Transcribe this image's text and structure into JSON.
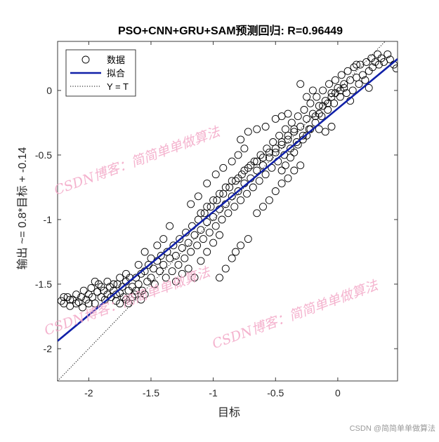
{
  "chart_data": {
    "type": "scatter",
    "title": "PSO+CNN+GRU+SAM预测回归: R=0.96449",
    "xlabel": "目标",
    "ylabel": "输出 ~= 0.8*目标 + -0.14",
    "xlim": [
      -2.25,
      0.48
    ],
    "ylim": [
      -2.25,
      0.38
    ],
    "xticks": [
      -2,
      -1.5,
      -1,
      -0.5,
      0
    ],
    "xtick_labels": [
      "-2",
      "-1.5",
      "-1",
      "-0.5",
      "0"
    ],
    "yticks": [
      -2,
      -1.5,
      -1,
      -0.5,
      0
    ],
    "ytick_labels": [
      "-2",
      "-1.5",
      "-1",
      "-0.5",
      "0"
    ],
    "grid": false,
    "legend": {
      "placement": "top-left",
      "entries": [
        {
          "label": "数据",
          "style": "marker-circle",
          "color": "#000000"
        },
        {
          "label": "拟合",
          "style": "solid-line",
          "color": "#1020a8"
        },
        {
          "label": "Y = T",
          "style": "dotted-line",
          "color": "#000000"
        }
      ]
    },
    "fit_line": {
      "slope": 0.8,
      "intercept": -0.14,
      "color": "#1020a8"
    },
    "identity_line": {
      "slope": 1,
      "intercept": 0,
      "color": "#000000"
    },
    "series": [
      {
        "name": "数据",
        "marker": "open-circle",
        "color": "#000000",
        "points": [
          [
            -2.2,
            -1.65
          ],
          [
            -2.17,
            -1.6
          ],
          [
            -2.15,
            -1.67
          ],
          [
            -2.13,
            -1.62
          ],
          [
            -2.1,
            -1.58
          ],
          [
            -2.08,
            -1.64
          ],
          [
            -2.06,
            -1.6
          ],
          [
            -2.04,
            -1.55
          ],
          [
            -2.02,
            -1.62
          ],
          [
            -2.0,
            -1.58
          ],
          [
            -1.98,
            -1.53
          ],
          [
            -1.97,
            -1.6
          ],
          [
            -1.95,
            -1.65
          ],
          [
            -1.93,
            -1.56
          ],
          [
            -1.92,
            -1.5
          ],
          [
            -1.9,
            -1.6
          ],
          [
            -1.88,
            -1.55
          ],
          [
            -1.87,
            -1.62
          ],
          [
            -1.85,
            -1.58
          ],
          [
            -1.83,
            -1.52
          ],
          [
            -1.82,
            -1.6
          ],
          [
            -1.8,
            -1.55
          ],
          [
            -1.78,
            -1.63
          ],
          [
            -1.77,
            -1.5
          ],
          [
            -1.75,
            -1.57
          ],
          [
            -1.73,
            -1.52
          ],
          [
            -1.72,
            -1.6
          ],
          [
            -1.7,
            -1.48
          ],
          [
            -1.68,
            -1.55
          ],
          [
            -1.67,
            -1.45
          ],
          [
            -1.65,
            -1.52
          ],
          [
            -1.63,
            -1.58
          ],
          [
            -1.62,
            -1.45
          ],
          [
            -1.6,
            -1.5
          ],
          [
            -1.58,
            -1.42
          ],
          [
            -1.57,
            -1.55
          ],
          [
            -1.55,
            -1.4
          ],
          [
            -1.53,
            -1.48
          ],
          [
            -1.52,
            -1.35
          ],
          [
            -1.5,
            -1.45
          ],
          [
            -1.48,
            -1.38
          ],
          [
            -1.47,
            -1.5
          ],
          [
            -1.45,
            -1.32
          ],
          [
            -1.43,
            -1.4
          ],
          [
            -1.42,
            -1.28
          ],
          [
            -1.4,
            -1.35
          ],
          [
            -1.38,
            -1.45
          ],
          [
            -1.37,
            -1.25
          ],
          [
            -1.35,
            -1.3
          ],
          [
            -1.33,
            -1.4
          ],
          [
            -1.32,
            -1.2
          ],
          [
            -1.3,
            -1.28
          ],
          [
            -1.28,
            -1.35
          ],
          [
            -1.27,
            -1.15
          ],
          [
            -1.25,
            -1.22
          ],
          [
            -1.23,
            -1.3
          ],
          [
            -1.22,
            -1.1
          ],
          [
            -1.2,
            -1.18
          ],
          [
            -1.18,
            -1.25
          ],
          [
            -1.17,
            -1.05
          ],
          [
            -1.15,
            -1.12
          ],
          [
            -1.13,
            -1.2
          ],
          [
            -1.12,
            -1.0
          ],
          [
            -1.1,
            -1.08
          ],
          [
            -1.08,
            -1.15
          ],
          [
            -1.07,
            -0.95
          ],
          [
            -1.05,
            -1.02
          ],
          [
            -1.03,
            -1.1
          ],
          [
            -1.02,
            -0.9
          ],
          [
            -1.0,
            -0.98
          ],
          [
            -0.98,
            -1.05
          ],
          [
            -0.97,
            -0.85
          ],
          [
            -0.95,
            -0.92
          ],
          [
            -0.93,
            -1.0
          ],
          [
            -0.92,
            -0.8
          ],
          [
            -0.9,
            -0.88
          ],
          [
            -0.88,
            -0.95
          ],
          [
            -0.87,
            -0.75
          ],
          [
            -0.85,
            -0.82
          ],
          [
            -0.83,
            -0.9
          ],
          [
            -0.82,
            -0.7
          ],
          [
            -0.8,
            -0.78
          ],
          [
            -0.78,
            -0.85
          ],
          [
            -0.77,
            -0.65
          ],
          [
            -0.75,
            -0.72
          ],
          [
            -0.73,
            -0.8
          ],
          [
            -0.72,
            -0.6
          ],
          [
            -0.7,
            -0.68
          ],
          [
            -0.68,
            -0.75
          ],
          [
            -0.67,
            -0.55
          ],
          [
            -0.65,
            -0.62
          ],
          [
            -0.63,
            -0.7
          ],
          [
            -0.62,
            -0.5
          ],
          [
            -0.6,
            -0.58
          ],
          [
            -0.58,
            -0.65
          ],
          [
            -0.57,
            -0.45
          ],
          [
            -0.55,
            -0.52
          ],
          [
            -0.53,
            -0.6
          ],
          [
            -0.52,
            -0.4
          ],
          [
            -0.5,
            -0.48
          ],
          [
            -0.48,
            -0.55
          ],
          [
            -0.47,
            -0.35
          ],
          [
            -0.45,
            -0.42
          ],
          [
            -0.43,
            -0.5
          ],
          [
            -0.42,
            -0.3
          ],
          [
            -0.4,
            -0.38
          ],
          [
            -0.38,
            -0.45
          ],
          [
            -0.37,
            -0.25
          ],
          [
            -0.35,
            -0.32
          ],
          [
            -0.33,
            -0.4
          ],
          [
            -0.32,
            -0.2
          ],
          [
            -0.3,
            -0.28
          ],
          [
            -0.28,
            -0.35
          ],
          [
            -0.27,
            -0.15
          ],
          [
            -0.25,
            -0.22
          ],
          [
            -0.23,
            -0.3
          ],
          [
            -0.22,
            -0.1
          ],
          [
            -0.2,
            -0.18
          ],
          [
            -0.18,
            -0.25
          ],
          [
            -0.17,
            -0.05
          ],
          [
            -0.15,
            -0.12
          ],
          [
            -0.13,
            -0.2
          ],
          [
            -0.12,
            0.0
          ],
          [
            -0.1,
            -0.08
          ],
          [
            -0.08,
            -0.15
          ],
          [
            -0.07,
            0.05
          ],
          [
            -0.05,
            -0.02
          ],
          [
            -0.03,
            -0.1
          ],
          [
            -0.02,
            0.08
          ],
          [
            0.0,
            0.02
          ],
          [
            0.02,
            -0.05
          ],
          [
            0.03,
            0.12
          ],
          [
            0.05,
            0.05
          ],
          [
            0.07,
            -0.02
          ],
          [
            0.08,
            0.15
          ],
          [
            0.1,
            0.08
          ],
          [
            0.12,
            0.0
          ],
          [
            0.13,
            0.18
          ],
          [
            0.15,
            0.1
          ],
          [
            0.17,
            0.05
          ],
          [
            0.18,
            0.2
          ],
          [
            0.2,
            0.12
          ],
          [
            0.22,
            0.08
          ],
          [
            0.23,
            0.22
          ],
          [
            0.25,
            0.15
          ],
          [
            0.27,
            0.25
          ],
          [
            0.28,
            0.18
          ],
          [
            0.3,
            0.22
          ],
          [
            0.32,
            0.28
          ],
          [
            0.33,
            0.2
          ],
          [
            0.35,
            0.25
          ],
          [
            0.37,
            0.22
          ],
          [
            0.4,
            0.28
          ],
          [
            0.42,
            0.24
          ],
          [
            0.45,
            0.2
          ],
          [
            0.47,
            0.17
          ],
          [
            -1.3,
            -1.48
          ],
          [
            -1.25,
            -1.42
          ],
          [
            -1.2,
            -1.38
          ],
          [
            -1.15,
            -1.45
          ],
          [
            -1.1,
            -1.32
          ],
          [
            -1.05,
            -1.25
          ],
          [
            -1.0,
            -1.18
          ],
          [
            -0.95,
            -1.12
          ],
          [
            -1.18,
            -0.88
          ],
          [
            -1.12,
            -0.82
          ],
          [
            -1.05,
            -0.72
          ],
          [
            -0.98,
            -0.65
          ],
          [
            -0.92,
            -0.6
          ],
          [
            -0.85,
            -0.55
          ],
          [
            -0.8,
            -0.5
          ],
          [
            -0.75,
            -0.45
          ],
          [
            -0.65,
            -0.95
          ],
          [
            -0.6,
            -0.9
          ],
          [
            -0.55,
            -0.85
          ],
          [
            -0.5,
            -0.78
          ],
          [
            -0.45,
            -0.72
          ],
          [
            -0.4,
            -0.68
          ],
          [
            -0.35,
            -0.62
          ],
          [
            -0.3,
            -0.58
          ],
          [
            -0.78,
            -0.38
          ],
          [
            -0.72,
            -0.32
          ],
          [
            -0.65,
            -0.3
          ],
          [
            -0.58,
            -0.28
          ],
          [
            -0.5,
            -0.22
          ],
          [
            -0.45,
            -0.2
          ],
          [
            -0.4,
            -0.18
          ],
          [
            -0.3,
            0.05
          ],
          [
            -0.2,
            0.0
          ],
          [
            -0.15,
            -0.3
          ],
          [
            -0.1,
            -0.32
          ],
          [
            -0.05,
            -0.28
          ],
          [
            -0.25,
            -0.05
          ],
          [
            0.1,
            -0.08
          ],
          [
            0.15,
            0.2
          ],
          [
            0.25,
            0.02
          ],
          [
            -0.95,
            -1.45
          ],
          [
            -0.9,
            -1.38
          ],
          [
            -0.85,
            -1.3
          ],
          [
            -0.82,
            -1.25
          ],
          [
            -0.78,
            -1.2
          ],
          [
            -0.72,
            -1.15
          ],
          [
            -1.35,
            -1.05
          ],
          [
            -1.4,
            -1.15
          ],
          [
            -1.45,
            -1.2
          ],
          [
            -1.5,
            -1.3
          ],
          [
            -1.55,
            -1.25
          ],
          [
            -1.6,
            -1.35
          ],
          [
            -1.7,
            -1.42
          ],
          [
            -1.75,
            -1.45
          ],
          [
            -1.8,
            -1.5
          ],
          [
            -1.85,
            -1.48
          ],
          [
            -1.9,
            -1.52
          ],
          [
            -1.95,
            -1.48
          ],
          [
            -2.0,
            -1.65
          ],
          [
            -2.05,
            -1.68
          ],
          [
            -2.1,
            -1.65
          ],
          [
            -2.15,
            -1.62
          ],
          [
            -2.2,
            -1.6
          ],
          [
            -2.22,
            -1.63
          ],
          [
            -1.65,
            -1.6
          ],
          [
            -1.7,
            -1.62
          ],
          [
            -1.75,
            -1.65
          ],
          [
            -1.78,
            -1.58
          ],
          [
            -1.68,
            -1.65
          ],
          [
            -1.62,
            -1.55
          ],
          [
            -1.58,
            -1.62
          ],
          [
            -1.55,
            -1.58
          ],
          [
            -0.45,
            -0.62
          ],
          [
            -0.42,
            -0.58
          ],
          [
            -0.38,
            -0.52
          ],
          [
            -0.35,
            -0.48
          ],
          [
            -0.32,
            -0.42
          ],
          [
            -0.28,
            -0.38
          ],
          [
            -0.25,
            -0.35
          ],
          [
            -0.22,
            -0.3
          ],
          [
            -0.18,
            -0.2
          ],
          [
            -0.15,
            -0.18
          ],
          [
            -0.12,
            -0.12
          ],
          [
            -0.08,
            -0.1
          ],
          [
            -0.05,
            -0.05
          ],
          [
            -0.02,
            -0.02
          ],
          [
            0.02,
            0.0
          ],
          [
            0.05,
            0.02
          ],
          [
            -1.1,
            -0.95
          ],
          [
            -1.05,
            -0.9
          ],
          [
            -1.0,
            -0.85
          ],
          [
            -0.95,
            -0.8
          ],
          [
            -0.9,
            -0.75
          ],
          [
            -0.85,
            -0.7
          ],
          [
            -0.8,
            -0.68
          ],
          [
            -0.75,
            -0.62
          ],
          [
            -0.7,
            -0.58
          ],
          [
            -0.65,
            -0.55
          ],
          [
            -0.6,
            -0.52
          ],
          [
            -0.55,
            -0.48
          ],
          [
            -0.5,
            -0.45
          ],
          [
            -0.45,
            -0.4
          ],
          [
            -0.4,
            -0.35
          ],
          [
            -0.35,
            -0.3
          ]
        ]
      }
    ]
  },
  "watermarks": [
    "CSDN博客：简简单单做算法",
    "CSDN博客：简简单单做算法",
    "CSDN博客：简简单单做算法"
  ],
  "footer_mark": "CSDN @简简单单做算法"
}
